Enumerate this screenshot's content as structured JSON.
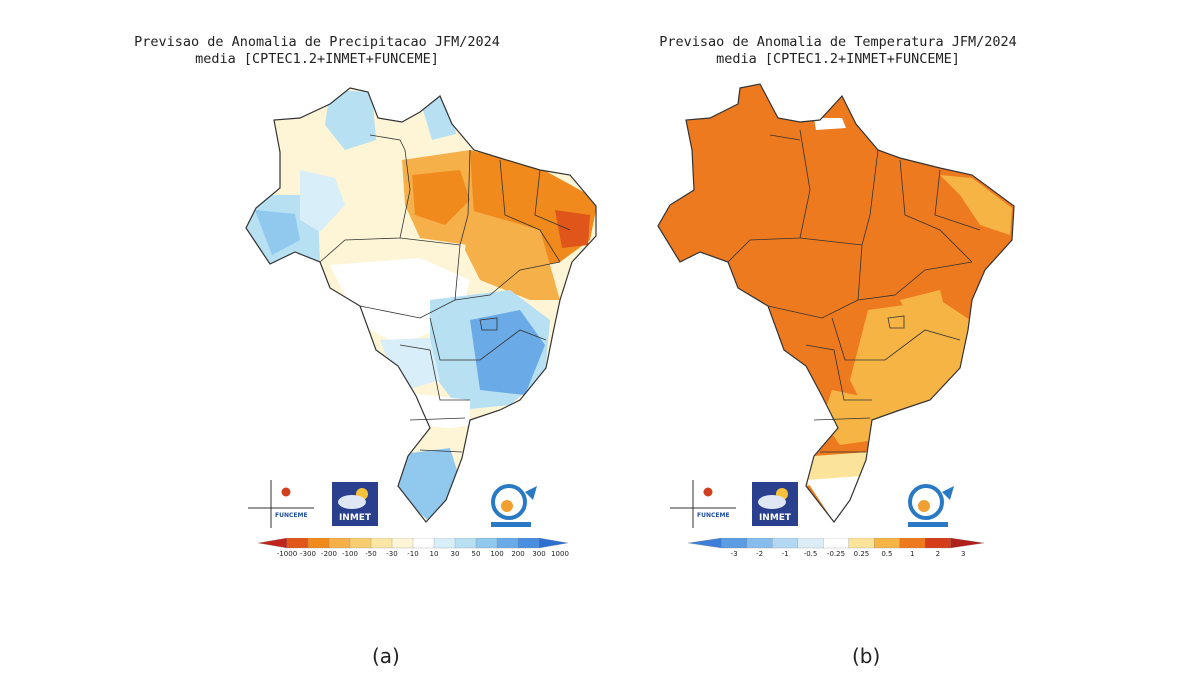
{
  "panel_a": {
    "title_line1": "Previsao de Anomalia de Precipitacao JFM/2024",
    "title_line2": "media [CPTEC1.2+INMET+FUNCEME]",
    "caption": "(a)",
    "legend": {
      "labels": [
        "-1000",
        "-300",
        "-200",
        "-100",
        "-50",
        "-30",
        "-10",
        "10",
        "30",
        "50",
        "100",
        "200",
        "300",
        "1000"
      ],
      "colors": [
        "#c0251b",
        "#e0551a",
        "#f08a1c",
        "#f6b04a",
        "#f8cd72",
        "#fbe6a6",
        "#fdf5d6",
        "#ffffff",
        "#d8eef8",
        "#b7e0f3",
        "#90c8ee",
        "#6aaae6",
        "#4a8ee0",
        "#2f6fd2"
      ]
    }
  },
  "panel_b": {
    "title_line1": "Previsao de Anomalia de Temperatura JFM/2024",
    "title_line2": "media [CPTEC1.2+INMET+FUNCEME]",
    "caption": "(b)",
    "legend": {
      "labels": [
        "-3",
        "-2",
        "-1",
        "-0.5",
        "-0.25",
        "0.25",
        "0.5",
        "1",
        "2",
        "3"
      ],
      "colors": [
        "#3d7fd8",
        "#5b9ce2",
        "#86bdec",
        "#b2d8f4",
        "#dcedf8",
        "#ffffff",
        "#fbe39a",
        "#f6b445",
        "#ee7a1f",
        "#d43c1a",
        "#b0201a"
      ]
    }
  },
  "logos": {
    "funceme": "FUNCEME",
    "inmet": "INMET"
  }
}
